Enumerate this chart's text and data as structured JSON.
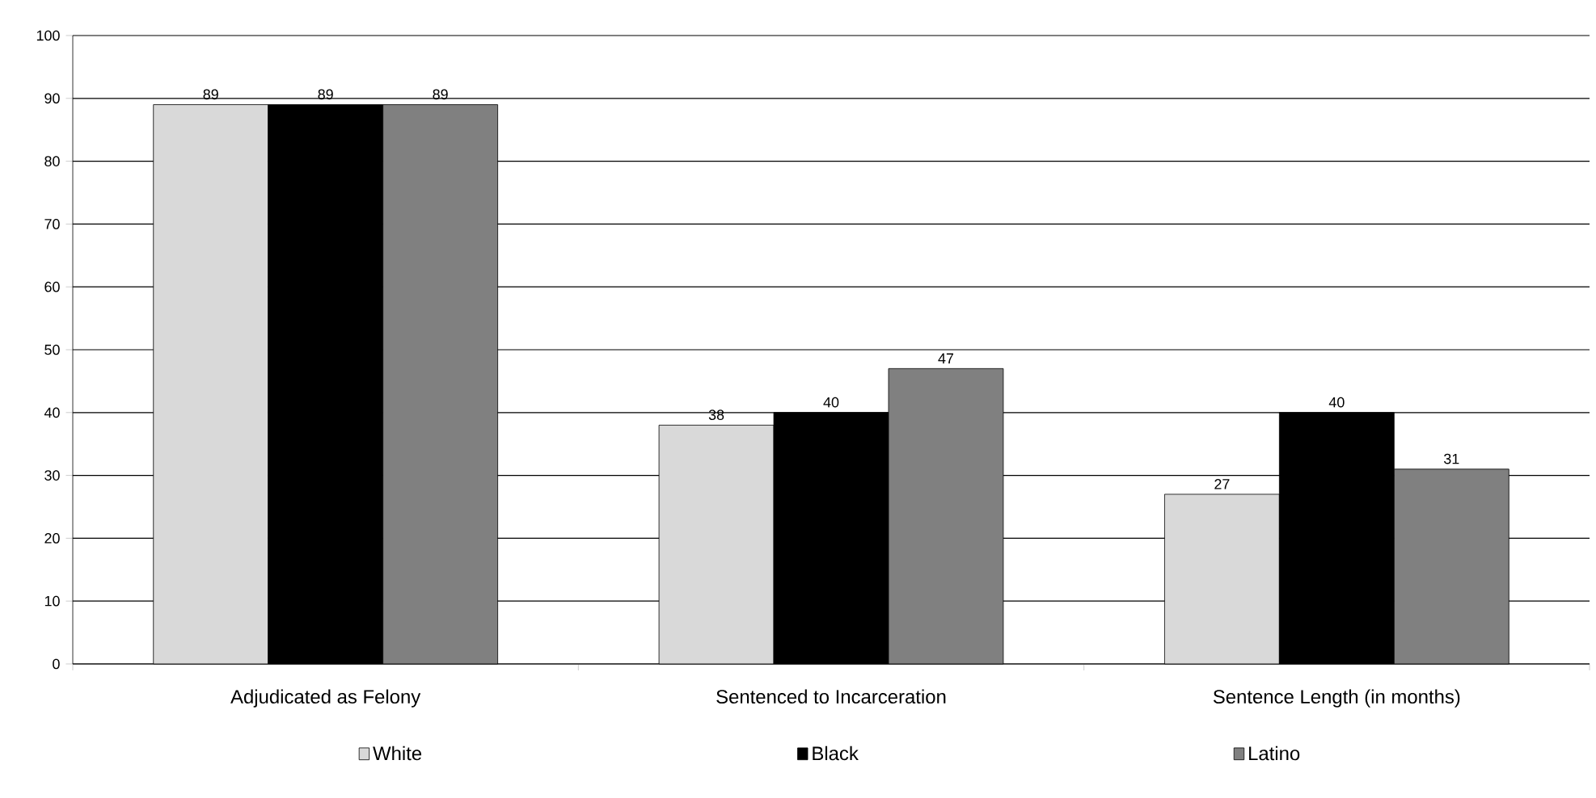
{
  "chart_data": {
    "type": "bar",
    "categories": [
      "Adjudicated as Felony",
      "Sentenced to Incarceration",
      "Sentence Length (in months)"
    ],
    "series": [
      {
        "name": "White",
        "color": "#d9d9d9",
        "values": [
          89,
          38,
          27
        ]
      },
      {
        "name": "Black",
        "color": "#000000",
        "values": [
          89,
          40,
          40
        ]
      },
      {
        "name": "Latino",
        "color": "#808080",
        "values": [
          89,
          47,
          31
        ]
      }
    ],
    "ylim": [
      0,
      100
    ],
    "yticks": [
      0,
      10,
      20,
      30,
      40,
      50,
      60,
      70,
      80,
      90,
      100
    ],
    "grid": "y",
    "legend": "bottom",
    "data_labels": true
  }
}
